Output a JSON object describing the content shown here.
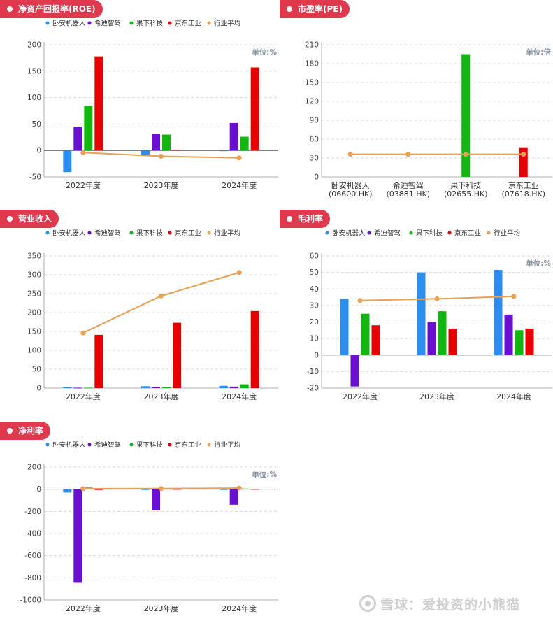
{
  "colors": {
    "series": [
      "#2b8df0",
      "#6a0fd2",
      "#11b611",
      "#e60000"
    ],
    "average": "#e8a055",
    "pill": "#e0384d",
    "unit_text": "#8a96a8"
  },
  "legend_labels": [
    "卧安机器人",
    "希迪智驾",
    "果下科技",
    "京东工业",
    "行业平均"
  ],
  "watermark": "雪球：爱投资的小熊猫",
  "chart_data": [
    {
      "id": "roe",
      "type": "bar",
      "title": "净资产回报率(ROE)",
      "unit": "单位:%",
      "categories": [
        "2022年度",
        "2023年度",
        "2024年度"
      ],
      "ylim": [
        -50,
        200
      ],
      "yticks": [
        -50,
        0,
        50,
        100,
        150,
        200
      ],
      "series": [
        {
          "name": "卧安机器人",
          "values": [
            -41,
            -8,
            -1
          ]
        },
        {
          "name": "希迪智驾",
          "values": [
            44,
            31,
            52
          ]
        },
        {
          "name": "果下科技",
          "values": [
            85,
            30,
            26
          ]
        },
        {
          "name": "京东工业",
          "values": [
            178,
            1,
            157
          ]
        }
      ],
      "average": {
        "name": "行业平均",
        "values": [
          -4,
          -11,
          -14
        ]
      },
      "legend": "top"
    },
    {
      "id": "pe",
      "type": "bar",
      "title": "市盈率(PE)",
      "unit": "单位:倍",
      "categories": [
        "卧安机器人|(06600.HK)",
        "希迪智驾|(03881.HK)",
        "果下科技|(02655.HK)",
        "京东工业|(07618.HK)"
      ],
      "ylim": [
        0,
        210
      ],
      "yticks": [
        0,
        30,
        60,
        90,
        120,
        150,
        180,
        210
      ],
      "series": [
        {
          "name": "市盈率",
          "values": [
            0,
            0,
            195,
            47
          ],
          "colors": [
            "#2b8df0",
            "#6a0fd2",
            "#11b611",
            "#e60000"
          ]
        }
      ],
      "average": {
        "name": "行业平均",
        "values": [
          36,
          36,
          36,
          36
        ]
      }
    },
    {
      "id": "revenue",
      "type": "bar",
      "title": "营业收入",
      "unit": "",
      "categories": [
        "2022年度",
        "2023年度",
        "2024年度"
      ],
      "ylim": [
        0,
        350
      ],
      "yticks": [
        0,
        50,
        100,
        150,
        200,
        250,
        300,
        350
      ],
      "series": [
        {
          "name": "卧安机器人",
          "values": [
            3,
            5,
            6
          ]
        },
        {
          "name": "希迪智驾",
          "values": [
            1,
            3,
            4
          ]
        },
        {
          "name": "果下科技",
          "values": [
            1,
            3,
            10
          ]
        },
        {
          "name": "京东工业",
          "values": [
            141,
            173,
            204
          ]
        }
      ],
      "average": {
        "name": "行业平均",
        "values": [
          146,
          244,
          306
        ]
      },
      "legend": "top"
    },
    {
      "id": "gross",
      "type": "bar",
      "title": "毛利率",
      "unit": "单位:%",
      "categories": [
        "2022年度",
        "2023年度",
        "2024年度"
      ],
      "ylim": [
        -20,
        60
      ],
      "yticks": [
        -20,
        -10,
        0,
        10,
        20,
        30,
        40,
        50,
        60
      ],
      "series": [
        {
          "name": "卧安机器人",
          "values": [
            34,
            50,
            51.5
          ]
        },
        {
          "name": "希迪智驾",
          "values": [
            -19,
            20,
            24.5
          ]
        },
        {
          "name": "果下科技",
          "values": [
            25,
            26.5,
            15
          ]
        },
        {
          "name": "京东工业",
          "values": [
            18,
            16,
            16
          ]
        }
      ],
      "average": {
        "name": "行业平均",
        "values": [
          33,
          34,
          35.5
        ]
      },
      "legend": "top"
    },
    {
      "id": "netmargin",
      "type": "bar",
      "title": "净利率",
      "unit": "单位:%",
      "categories": [
        "2022年度",
        "2023年度",
        "2024年度"
      ],
      "ylim": [
        -1000,
        200
      ],
      "yticks": [
        -1000,
        -800,
        -600,
        -400,
        -200,
        0,
        200
      ],
      "series": [
        {
          "name": "卧安机器人",
          "values": [
            -30,
            -5,
            -4
          ]
        },
        {
          "name": "希迪智驾",
          "values": [
            -845,
            -190,
            -140
          ]
        },
        {
          "name": "果下科技",
          "values": [
            15,
            8,
            6
          ]
        },
        {
          "name": "京东工业",
          "values": [
            -5,
            2,
            2
          ]
        }
      ],
      "average": {
        "name": "行业平均",
        "values": [
          5,
          6,
          10
        ]
      },
      "legend": "top"
    }
  ]
}
